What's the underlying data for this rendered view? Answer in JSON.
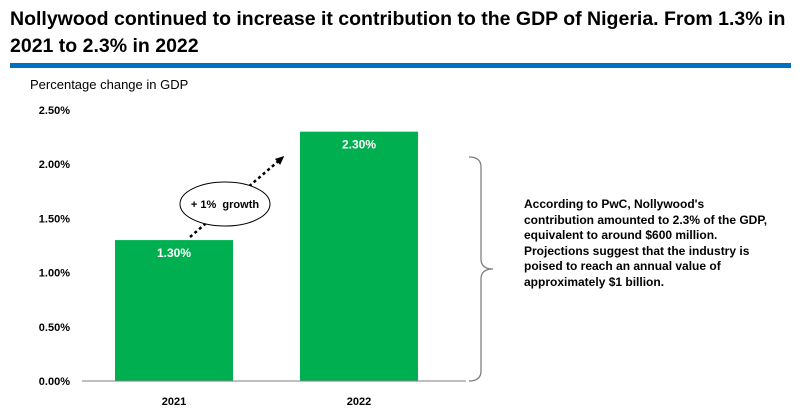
{
  "header": {
    "title": "Nollywood continued to increase it contribution to the GDP of Nigeria. From 1.3% in 2021 to 2.3% in 2022"
  },
  "annotation": {
    "growth_label": "+ 1%  growth",
    "note": "According to PwC, Nollywood's contribution amounted to 2.3% of the GDP, equivalent to around $600 million. Projections suggest that the industry is poised to reach an annual value of approximately $1 billion."
  },
  "colors": {
    "bar": "#00b050",
    "accent_rule": "#0070c0"
  },
  "chart_data": {
    "type": "bar",
    "title": "",
    "ylabel": "Percentage change in GDP",
    "xlabel": "",
    "categories": [
      "2021",
      "2022"
    ],
    "values": [
      1.3,
      2.3
    ],
    "data_labels": [
      "1.30%",
      "2.30%"
    ],
    "ylim": [
      0,
      2.5
    ],
    "yticks": [
      0,
      0.5,
      1.0,
      1.5,
      2.0,
      2.5
    ],
    "ytick_labels": [
      "0.00%",
      "0.50%",
      "1.00%",
      "1.50%",
      "2.00%",
      "2.50%"
    ],
    "grid": false,
    "legend": "none"
  }
}
